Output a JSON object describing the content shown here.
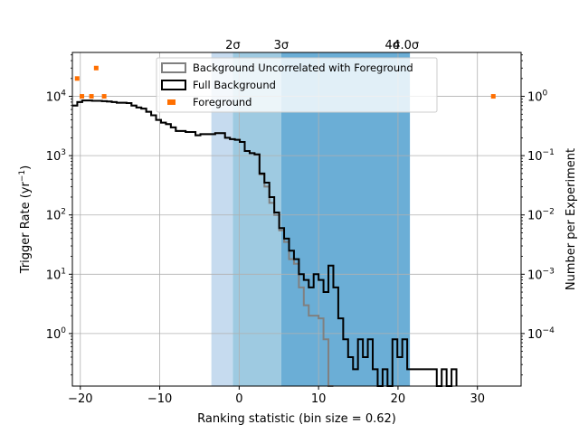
{
  "chart_data": {
    "type": "step",
    "xlabel": "Ranking statistic (bin size = 0.62)",
    "ylabel_left": "Trigger Rate (yr",
    "ylabel_left_sup": "−1",
    "ylabel_left_end": ")",
    "ylabel_right": "Number per Experiment",
    "xlim": [
      -21,
      35.5
    ],
    "ylim_left": [
      0.13,
      55000
    ],
    "ylim_right": [
      1.3e-05,
      5.5
    ],
    "yscale": "log",
    "grid": true,
    "legend_position": "top-center",
    "x_ticks": [
      -20,
      -10,
      0,
      10,
      20,
      30
    ],
    "x_tick_labels": [
      "−20",
      "−10",
      "0",
      "10",
      "20",
      "30"
    ],
    "y_left_ticks": [
      1,
      10,
      100,
      1000,
      10000
    ],
    "y_left_tick_labels": [
      "10",
      "10",
      "10",
      "10",
      "10"
    ],
    "y_left_tick_exps": [
      "0",
      "1",
      "2",
      "3",
      "4"
    ],
    "y_right_ticks": [
      0.0001,
      0.001,
      0.01,
      0.1,
      1
    ],
    "y_right_tick_labels": [
      "10",
      "10",
      "10",
      "10",
      "10"
    ],
    "y_right_tick_exps": [
      "−4",
      "−3",
      "−2",
      "−1",
      "0"
    ],
    "sigma_bands": [
      {
        "label": "2σ",
        "x0": -3.5,
        "x1": -0.8,
        "color": "#c6dbef"
      },
      {
        "label": "3σ",
        "x0": -0.8,
        "x1": 5.3,
        "color": "#9ecae1"
      },
      {
        "label": "4σ",
        "x0": 5.3,
        "x1": 21.5,
        "color": "#6baed6"
      },
      {
        "label": "4.0σ",
        "x0": 21.5,
        "x1": 21.5,
        "color": "#e3f1fb"
      }
    ],
    "sigma_label_positions": [
      -0.8,
      5.3,
      19.3,
      21.0
    ],
    "series": [
      {
        "name": "Background Uncorrelated with Foreground",
        "color": "#808080",
        "x_start": -21,
        "bin_width": 0.62,
        "values": [
          7000,
          8000,
          8500,
          8500,
          8400,
          8400,
          8300,
          8200,
          8000,
          7800,
          7800,
          7700,
          7000,
          6500,
          6200,
          5500,
          4800,
          4000,
          3600,
          3400,
          3000,
          2600,
          2600,
          2500,
          2500,
          2200,
          2300,
          2300,
          2300,
          2400,
          2400,
          2000,
          1900,
          1850,
          1700,
          1200,
          1100,
          1050,
          480,
          300,
          160,
          100,
          55,
          35,
          18,
          15,
          6,
          3,
          2,
          2,
          1.8,
          0.8,
          0.13
        ]
      },
      {
        "name": "Full Background",
        "color": "#000000",
        "x_start": -21,
        "bin_width": 0.62,
        "values": [
          7000,
          8000,
          8500,
          8500,
          8400,
          8400,
          8300,
          8200,
          8000,
          7800,
          7800,
          7700,
          7000,
          6500,
          6200,
          5500,
          4800,
          4000,
          3600,
          3400,
          3000,
          2600,
          2600,
          2500,
          2500,
          2200,
          2300,
          2300,
          2300,
          2400,
          2400,
          2000,
          1900,
          1850,
          1700,
          1200,
          1100,
          1050,
          500,
          350,
          200,
          110,
          60,
          40,
          25,
          18,
          10,
          8,
          6,
          10,
          8,
          5,
          14,
          6,
          1.8,
          0.8,
          0.4,
          0.25,
          0.8,
          0.4,
          0.8,
          0.25,
          0.13,
          0.25,
          0.13,
          0.8,
          0.4,
          0.8,
          0.25,
          0.25,
          0.25,
          0.25,
          0.25,
          0.25,
          0.13,
          0.25,
          0.13,
          0.25
        ]
      },
      {
        "name": "Foreground",
        "color": "#ff6f00",
        "marker": "square",
        "x": [
          -20.4,
          -19.8,
          -18.6,
          -18.0,
          -17.0,
          32.0
        ],
        "y": [
          2.0,
          1.0,
          1.0,
          3.0,
          1.0,
          1.0
        ],
        "axis": "right"
      }
    ]
  }
}
